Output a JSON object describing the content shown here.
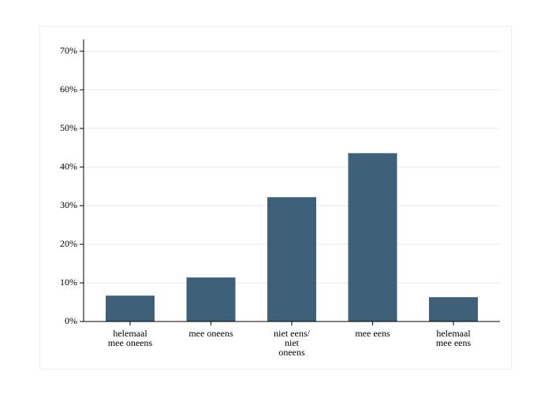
{
  "chart_data": {
    "type": "bar",
    "categories": [
      "helemaal\nmee oneens",
      "mee oneens",
      "niet eens/\nniet\noneens",
      "mee eens",
      "helemaal\nmee eens"
    ],
    "values": [
      6.7,
      11.4,
      32.2,
      43.6,
      6.3
    ],
    "color": "#3e6079",
    "ylim": [
      0,
      70
    ],
    "yticks": [
      {
        "value": 0,
        "label": "0%"
      },
      {
        "value": 10,
        "label": "10%"
      },
      {
        "value": 20,
        "label": "20%"
      },
      {
        "value": 30,
        "label": "30%"
      },
      {
        "value": 40,
        "label": "40%"
      },
      {
        "value": 50,
        "label": "50%"
      },
      {
        "value": 60,
        "label": "60%"
      },
      {
        "value": 70,
        "label": "70%"
      }
    ],
    "grid": true
  }
}
